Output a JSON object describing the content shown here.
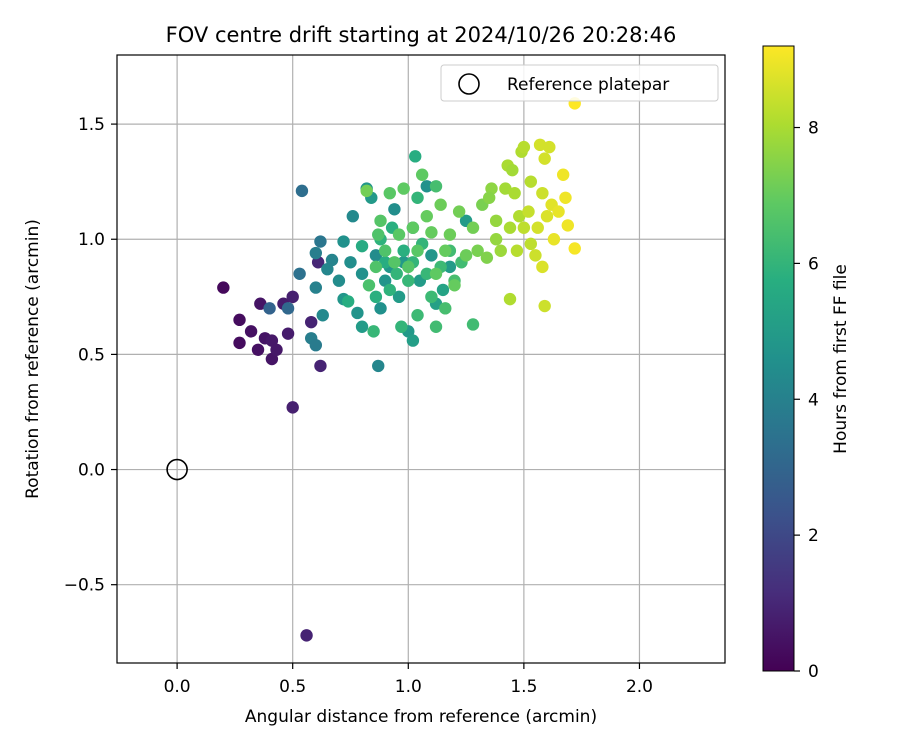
{
  "chart_data": {
    "type": "scatter",
    "title": "FOV centre drift starting at 2024/10/26 20:28:46",
    "xlabel": "Angular distance from reference (arcmin)",
    "ylabel": "Rotation from reference (arcmin)",
    "xlim": [
      -0.26,
      2.37
    ],
    "ylim": [
      -0.84,
      1.8
    ],
    "xticks": [
      0.0,
      0.5,
      1.0,
      1.5,
      2.0
    ],
    "xtick_labels": [
      "0.0",
      "0.5",
      "1.0",
      "1.5",
      "2.0"
    ],
    "yticks": [
      -0.5,
      0.0,
      0.5,
      1.0,
      1.5
    ],
    "ytick_labels": [
      "−0.5",
      "0.0",
      "0.5",
      "1.0",
      "1.5"
    ],
    "grid": true,
    "legend": {
      "position": "top-right",
      "entries": [
        {
          "label": "Reference platepar",
          "marker": "open-circle"
        }
      ]
    },
    "reference_point": {
      "x": 0.0,
      "y": 0.0
    },
    "colorbar": {
      "label": "Hours from first FF file",
      "colormap": "viridis",
      "range": [
        0,
        9.2
      ],
      "ticks": [
        0,
        2,
        4,
        6,
        8
      ],
      "tick_labels": [
        "0",
        "2",
        "4",
        "6",
        "8"
      ]
    },
    "series": [
      {
        "points": [
          {
            "x": 0.2,
            "y": 0.79,
            "h": 0.2
          },
          {
            "x": 0.27,
            "y": 0.65,
            "h": 0.3
          },
          {
            "x": 0.27,
            "y": 0.55,
            "h": 0.3
          },
          {
            "x": 0.32,
            "y": 0.6,
            "h": 0.4
          },
          {
            "x": 0.35,
            "y": 0.52,
            "h": 0.4
          },
          {
            "x": 0.36,
            "y": 0.72,
            "h": 0.5
          },
          {
            "x": 0.38,
            "y": 0.57,
            "h": 0.5
          },
          {
            "x": 0.41,
            "y": 0.48,
            "h": 0.5
          },
          {
            "x": 0.41,
            "y": 0.56,
            "h": 0.6
          },
          {
            "x": 0.43,
            "y": 0.52,
            "h": 0.6
          },
          {
            "x": 0.46,
            "y": 0.72,
            "h": 0.7
          },
          {
            "x": 0.48,
            "y": 0.59,
            "h": 0.7
          },
          {
            "x": 0.5,
            "y": 0.75,
            "h": 0.8
          },
          {
            "x": 0.5,
            "y": 0.27,
            "h": 0.8
          },
          {
            "x": 0.58,
            "y": 0.64,
            "h": 0.9
          },
          {
            "x": 0.62,
            "y": 0.45,
            "h": 0.9
          },
          {
            "x": 0.56,
            "y": -0.72,
            "h": 0.9
          },
          {
            "x": 0.61,
            "y": 0.9,
            "h": 1.0
          },
          {
            "x": 0.4,
            "y": 0.7,
            "h": 2.9
          },
          {
            "x": 0.48,
            "y": 0.7,
            "h": 3.1
          },
          {
            "x": 0.53,
            "y": 0.85,
            "h": 3.4
          },
          {
            "x": 0.54,
            "y": 1.21,
            "h": 3.3
          },
          {
            "x": 0.58,
            "y": 0.57,
            "h": 3.9
          },
          {
            "x": 0.6,
            "y": 0.54,
            "h": 3.8
          },
          {
            "x": 0.6,
            "y": 0.79,
            "h": 4.0
          },
          {
            "x": 0.6,
            "y": 0.94,
            "h": 3.9
          },
          {
            "x": 0.62,
            "y": 0.99,
            "h": 3.6
          },
          {
            "x": 0.63,
            "y": 0.67,
            "h": 4.3
          },
          {
            "x": 0.65,
            "y": 0.87,
            "h": 4.2
          },
          {
            "x": 0.67,
            "y": 0.91,
            "h": 4.1
          },
          {
            "x": 0.7,
            "y": 0.82,
            "h": 4.4
          },
          {
            "x": 0.72,
            "y": 0.99,
            "h": 4.6
          },
          {
            "x": 0.72,
            "y": 0.74,
            "h": 4.8
          },
          {
            "x": 0.75,
            "y": 0.9,
            "h": 4.5
          },
          {
            "x": 0.76,
            "y": 1.1,
            "h": 4.3
          },
          {
            "x": 0.78,
            "y": 0.68,
            "h": 4.7
          },
          {
            "x": 0.8,
            "y": 0.85,
            "h": 4.6
          },
          {
            "x": 0.8,
            "y": 0.62,
            "h": 5.0
          },
          {
            "x": 0.82,
            "y": 1.22,
            "h": 4.8
          },
          {
            "x": 0.84,
            "y": 1.18,
            "h": 4.9
          },
          {
            "x": 0.86,
            "y": 0.93,
            "h": 4.4
          },
          {
            "x": 0.87,
            "y": 0.45,
            "h": 4.2
          },
          {
            "x": 0.88,
            "y": 0.7,
            "h": 4.6
          },
          {
            "x": 0.9,
            "y": 0.82,
            "h": 4.7
          },
          {
            "x": 0.92,
            "y": 0.88,
            "h": 4.8
          },
          {
            "x": 0.94,
            "y": 1.13,
            "h": 4.5
          },
          {
            "x": 0.96,
            "y": 0.75,
            "h": 5.0
          },
          {
            "x": 0.98,
            "y": 0.9,
            "h": 4.9
          },
          {
            "x": 1.0,
            "y": 0.6,
            "h": 4.9
          },
          {
            "x": 1.02,
            "y": 0.56,
            "h": 5.1
          },
          {
            "x": 1.02,
            "y": 1.05,
            "h": 4.7
          },
          {
            "x": 1.05,
            "y": 0.82,
            "h": 5.0
          },
          {
            "x": 1.08,
            "y": 1.23,
            "h": 4.6
          },
          {
            "x": 1.1,
            "y": 0.93,
            "h": 4.8
          },
          {
            "x": 1.12,
            "y": 0.72,
            "h": 5.2
          },
          {
            "x": 1.15,
            "y": 0.78,
            "h": 5.3
          },
          {
            "x": 1.18,
            "y": 0.88,
            "h": 5.0
          },
          {
            "x": 1.25,
            "y": 1.08,
            "h": 5.0
          },
          {
            "x": 1.03,
            "y": 1.36,
            "h": 5.7
          },
          {
            "x": 0.74,
            "y": 0.73,
            "h": 5.7
          },
          {
            "x": 0.8,
            "y": 0.97,
            "h": 5.6
          },
          {
            "x": 0.85,
            "y": 0.6,
            "h": 6.1
          },
          {
            "x": 0.86,
            "y": 0.75,
            "h": 5.8
          },
          {
            "x": 0.88,
            "y": 1.0,
            "h": 5.9
          },
          {
            "x": 0.9,
            "y": 0.9,
            "h": 5.7
          },
          {
            "x": 0.92,
            "y": 0.78,
            "h": 5.9
          },
          {
            "x": 0.93,
            "y": 1.05,
            "h": 5.8
          },
          {
            "x": 0.95,
            "y": 0.85,
            "h": 6.0
          },
          {
            "x": 0.97,
            "y": 0.62,
            "h": 6.0
          },
          {
            "x": 0.98,
            "y": 0.95,
            "h": 5.8
          },
          {
            "x": 1.0,
            "y": 0.82,
            "h": 6.1
          },
          {
            "x": 1.02,
            "y": 0.9,
            "h": 6.0
          },
          {
            "x": 1.04,
            "y": 0.67,
            "h": 6.2
          },
          {
            "x": 1.06,
            "y": 0.98,
            "h": 6.0
          },
          {
            "x": 1.08,
            "y": 0.85,
            "h": 6.1
          },
          {
            "x": 1.1,
            "y": 0.75,
            "h": 6.2
          },
          {
            "x": 1.12,
            "y": 0.62,
            "h": 6.3
          },
          {
            "x": 1.14,
            "y": 0.88,
            "h": 6.2
          },
          {
            "x": 1.16,
            "y": 0.7,
            "h": 6.4
          },
          {
            "x": 1.18,
            "y": 0.95,
            "h": 6.3
          },
          {
            "x": 1.2,
            "y": 0.82,
            "h": 6.4
          },
          {
            "x": 1.23,
            "y": 0.9,
            "h": 6.3
          },
          {
            "x": 1.28,
            "y": 0.63,
            "h": 6.3
          },
          {
            "x": 1.04,
            "y": 1.18,
            "h": 6.0
          },
          {
            "x": 1.12,
            "y": 1.23,
            "h": 6.4
          },
          {
            "x": 0.83,
            "y": 0.8,
            "h": 6.5
          },
          {
            "x": 0.86,
            "y": 0.88,
            "h": 6.6
          },
          {
            "x": 0.88,
            "y": 1.08,
            "h": 6.7
          },
          {
            "x": 0.9,
            "y": 0.95,
            "h": 6.6
          },
          {
            "x": 0.92,
            "y": 1.2,
            "h": 6.8
          },
          {
            "x": 0.94,
            "y": 0.9,
            "h": 6.7
          },
          {
            "x": 0.96,
            "y": 1.02,
            "h": 6.8
          },
          {
            "x": 0.98,
            "y": 1.22,
            "h": 6.9
          },
          {
            "x": 1.0,
            "y": 0.88,
            "h": 6.7
          },
          {
            "x": 1.02,
            "y": 1.05,
            "h": 6.9
          },
          {
            "x": 1.04,
            "y": 0.95,
            "h": 6.8
          },
          {
            "x": 1.06,
            "y": 1.28,
            "h": 6.9
          },
          {
            "x": 1.08,
            "y": 1.1,
            "h": 7.0
          },
          {
            "x": 1.1,
            "y": 1.03,
            "h": 7.0
          },
          {
            "x": 1.12,
            "y": 0.85,
            "h": 6.9
          },
          {
            "x": 1.14,
            "y": 1.15,
            "h": 7.1
          },
          {
            "x": 1.16,
            "y": 0.95,
            "h": 7.0
          },
          {
            "x": 1.18,
            "y": 1.02,
            "h": 7.1
          },
          {
            "x": 1.2,
            "y": 0.8,
            "h": 7.0
          },
          {
            "x": 1.22,
            "y": 1.12,
            "h": 7.2
          },
          {
            "x": 1.25,
            "y": 0.93,
            "h": 7.1
          },
          {
            "x": 1.28,
            "y": 1.05,
            "h": 7.2
          },
          {
            "x": 1.3,
            "y": 0.95,
            "h": 7.3
          },
          {
            "x": 1.32,
            "y": 1.15,
            "h": 7.3
          },
          {
            "x": 1.34,
            "y": 0.92,
            "h": 7.4
          },
          {
            "x": 0.82,
            "y": 1.21,
            "h": 7.2
          },
          {
            "x": 0.87,
            "y": 1.02,
            "h": 6.6
          },
          {
            "x": 1.36,
            "y": 1.22,
            "h": 7.6
          },
          {
            "x": 1.38,
            "y": 1.08,
            "h": 7.7
          },
          {
            "x": 1.4,
            "y": 0.95,
            "h": 7.8
          },
          {
            "x": 1.42,
            "y": 1.22,
            "h": 7.9
          },
          {
            "x": 1.43,
            "y": 1.32,
            "h": 8.0
          },
          {
            "x": 1.44,
            "y": 1.05,
            "h": 8.0
          },
          {
            "x": 1.44,
            "y": 0.74,
            "h": 8.1
          },
          {
            "x": 1.46,
            "y": 1.2,
            "h": 8.0
          },
          {
            "x": 1.47,
            "y": 0.95,
            "h": 8.2
          },
          {
            "x": 1.48,
            "y": 1.1,
            "h": 8.1
          },
          {
            "x": 1.49,
            "y": 1.38,
            "h": 8.1
          },
          {
            "x": 1.5,
            "y": 1.4,
            "h": 8.2
          },
          {
            "x": 1.52,
            "y": 1.12,
            "h": 8.4
          },
          {
            "x": 1.53,
            "y": 0.98,
            "h": 8.3
          },
          {
            "x": 1.55,
            "y": 0.93,
            "h": 8.5
          },
          {
            "x": 1.56,
            "y": 1.05,
            "h": 8.6
          },
          {
            "x": 1.57,
            "y": 1.41,
            "h": 8.6
          },
          {
            "x": 1.58,
            "y": 1.2,
            "h": 8.5
          },
          {
            "x": 1.58,
            "y": 0.88,
            "h": 8.7
          },
          {
            "x": 1.59,
            "y": 1.35,
            "h": 8.6
          },
          {
            "x": 1.59,
            "y": 0.71,
            "h": 8.5
          },
          {
            "x": 1.6,
            "y": 1.1,
            "h": 8.7
          },
          {
            "x": 1.61,
            "y": 1.4,
            "h": 8.6
          },
          {
            "x": 1.62,
            "y": 1.15,
            "h": 8.8
          },
          {
            "x": 1.63,
            "y": 1.0,
            "h": 8.9
          },
          {
            "x": 1.65,
            "y": 1.12,
            "h": 8.9
          },
          {
            "x": 1.67,
            "y": 1.28,
            "h": 9.0
          },
          {
            "x": 1.68,
            "y": 1.18,
            "h": 9.0
          },
          {
            "x": 1.69,
            "y": 1.06,
            "h": 9.0
          },
          {
            "x": 1.72,
            "y": 0.96,
            "h": 9.1
          },
          {
            "x": 1.72,
            "y": 1.59,
            "h": 9.2
          },
          {
            "x": 1.35,
            "y": 1.18,
            "h": 7.5
          },
          {
            "x": 1.38,
            "y": 1.0,
            "h": 7.7
          },
          {
            "x": 1.45,
            "y": 1.3,
            "h": 7.9
          },
          {
            "x": 1.5,
            "y": 1.05,
            "h": 8.3
          },
          {
            "x": 1.53,
            "y": 1.25,
            "h": 8.2
          }
        ]
      }
    ]
  }
}
